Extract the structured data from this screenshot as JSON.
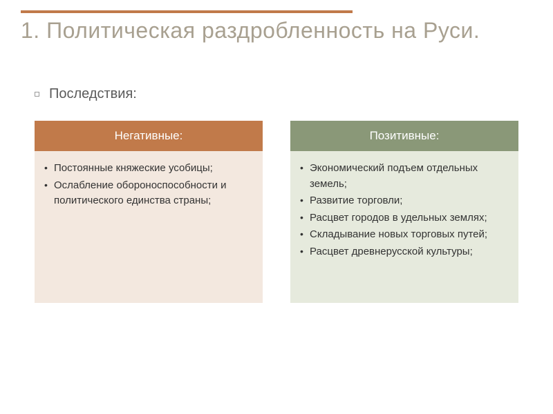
{
  "title": "1. Политическая раздробленность на Руси.",
  "subtitle": "Последствия:",
  "columns": {
    "negative": {
      "header": "Негативные:",
      "items": [
        "Постоянные княжеские усобицы;",
        "Ослабление обороноспособности и политического единства страны;"
      ]
    },
    "positive": {
      "header": "Позитивные:",
      "items": [
        "Экономический подъем отдельных земель;",
        "Развитие торговли;"
      ],
      "nested": [
        "Расцвет городов в удельных землях;",
        "Складывание новых торговых путей;",
        "Расцвет древнерусской культуры;"
      ]
    }
  },
  "colors": {
    "accent_bar": "#c17a4a",
    "title_color": "#a8a090",
    "neg_header": "#c17a4a",
    "neg_body": "#f3e8df",
    "pos_header": "#8a9878",
    "pos_body": "#e6eadd"
  }
}
